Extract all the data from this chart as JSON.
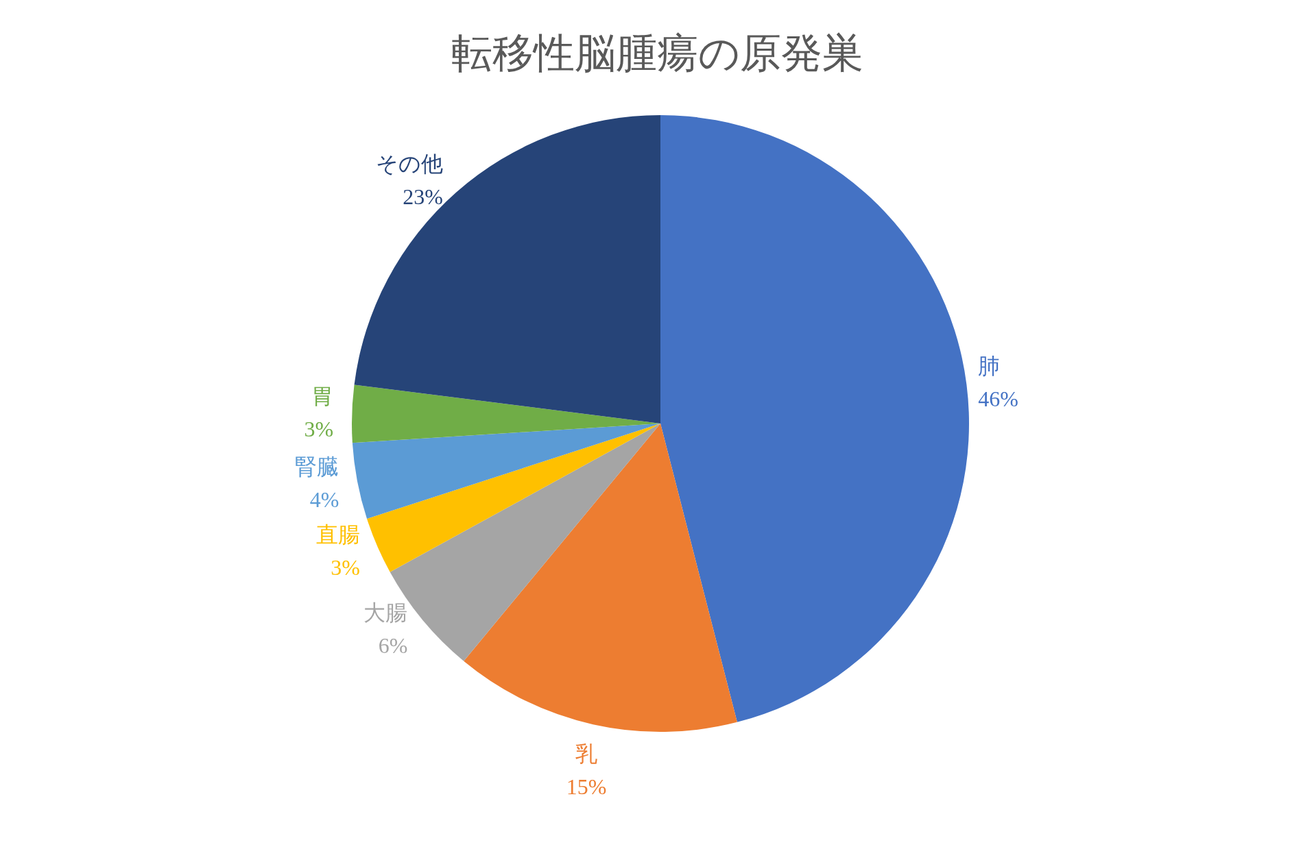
{
  "chart_data": {
    "type": "pie",
    "title": "転移性脳腫瘍の原発巣",
    "categories": [
      "肺",
      "乳",
      "大腸",
      "直腸",
      "腎臓",
      "胃",
      "その他"
    ],
    "values": [
      46,
      15,
      6,
      3,
      4,
      3,
      23
    ],
    "colors": [
      "#4472c4",
      "#ed7d31",
      "#a5a5a5",
      "#ffc000",
      "#5b9bd5",
      "#70ad47",
      "#264478"
    ],
    "value_labels": [
      "46%",
      "15%",
      "6%",
      "3%",
      "4%",
      "3%",
      "23%"
    ]
  }
}
